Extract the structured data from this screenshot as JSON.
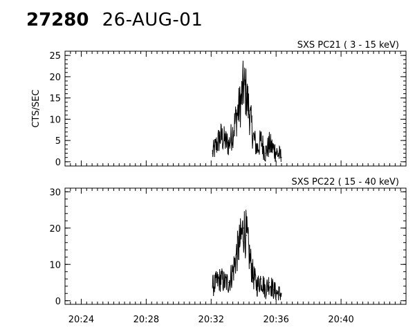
{
  "header": {
    "obs_id": "27280",
    "date": "26-AUG-01"
  },
  "chart_data": [
    {
      "type": "line",
      "title": "SXS PC21  (  3 - 15 keV)",
      "ylabel": "CTS/SEC",
      "xlabel": "",
      "ylim": [
        -1,
        26
      ],
      "y_ticks": [
        0,
        5,
        10,
        15,
        20,
        25
      ],
      "xlim": [
        "20:23",
        "20:44"
      ],
      "x_tick_labels": [],
      "grid": false,
      "series": [
        {
          "x": [
            "20:32:05",
            "20:32:20",
            "20:32:35",
            "20:32:50",
            "20:33:05",
            "20:33:20",
            "20:33:35",
            "20:33:50",
            "20:34:00",
            "20:34:10",
            "20:34:20",
            "20:34:35",
            "20:34:50",
            "20:35:05",
            "20:35:20",
            "20:35:35",
            "20:35:50",
            "20:36:05",
            "20:36:20"
          ],
          "values": [
            2,
            4,
            6,
            5,
            4,
            7,
            11,
            14,
            18,
            16,
            12,
            6,
            3,
            5,
            2,
            4,
            3,
            2,
            1
          ]
        }
      ]
    },
    {
      "type": "line",
      "title": "SXS PC22  ( 15 - 40 keV)",
      "ylabel": "",
      "xlabel": "",
      "ylim": [
        -1,
        31
      ],
      "y_ticks": [
        0,
        10,
        20,
        30
      ],
      "xlim": [
        "20:23",
        "20:44"
      ],
      "x_tick_labels": [
        "20:24",
        "20:28",
        "20:32",
        "20:36",
        "20:40"
      ],
      "grid": false,
      "series": [
        {
          "x": [
            "20:32:05",
            "20:32:20",
            "20:32:35",
            "20:32:50",
            "20:33:05",
            "20:33:20",
            "20:33:35",
            "20:33:50",
            "20:34:00",
            "20:34:10",
            "20:34:20",
            "20:34:35",
            "20:34:50",
            "20:35:05",
            "20:35:20",
            "20:35:35",
            "20:35:50",
            "20:36:05",
            "20:36:20"
          ],
          "values": [
            4,
            5,
            6,
            5,
            5,
            8,
            13,
            17,
            20,
            18,
            13,
            7,
            4,
            6,
            3,
            5,
            3,
            2,
            2
          ]
        }
      ]
    }
  ]
}
